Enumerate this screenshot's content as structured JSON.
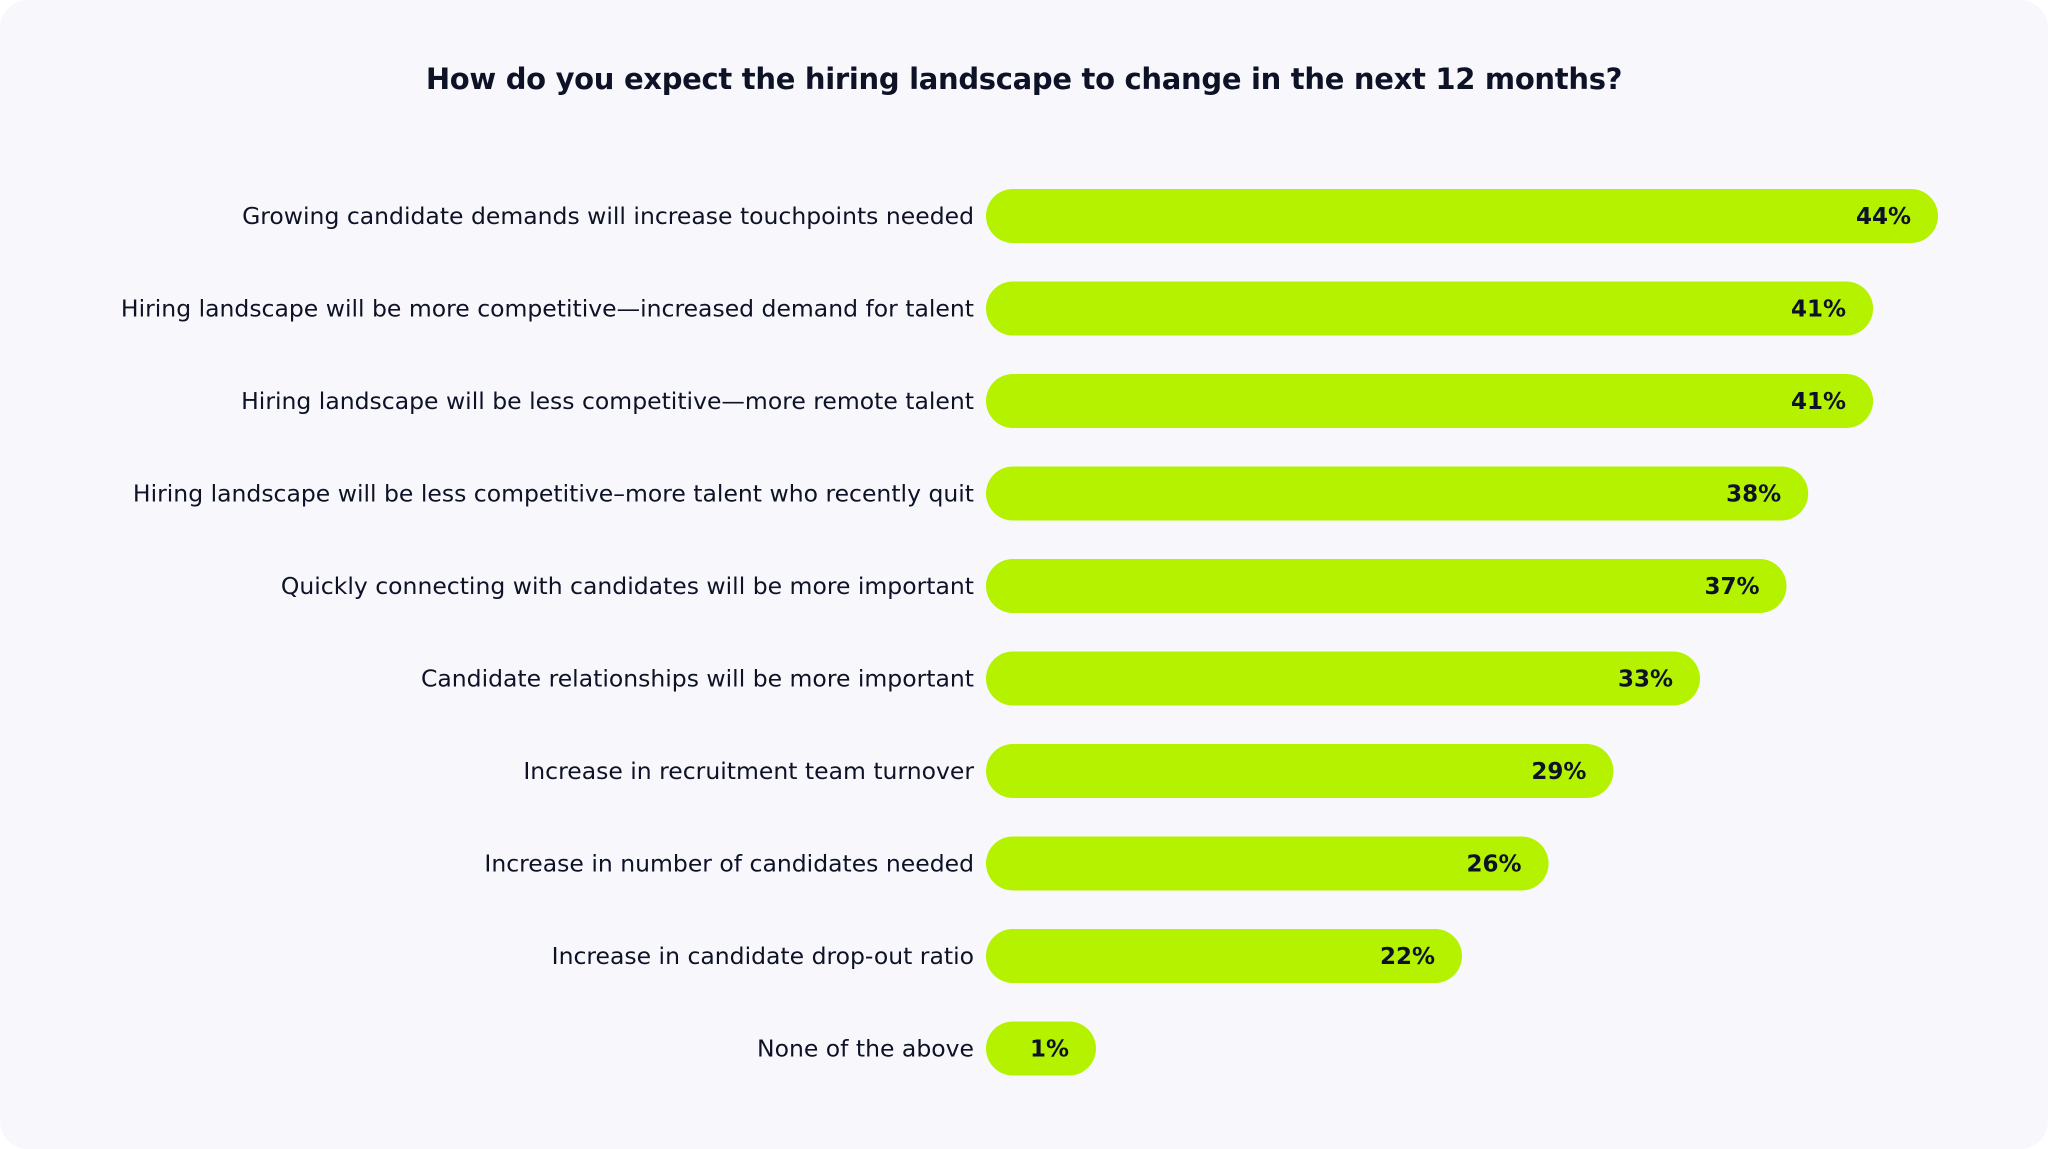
{
  "chart_data": {
    "type": "bar",
    "orientation": "horizontal",
    "title": "How do you expect the hiring landscape to change in the next 12 months?",
    "xlabel": "",
    "ylabel": "",
    "grid": false,
    "unit": "%",
    "xlim": [
      0,
      44
    ],
    "bar_color": "#b4f200",
    "categories": [
      "Growing candidate demands will increase touchpoints needed",
      "Hiring landscape will be more competitive—increased demand for talent",
      "Hiring landscape will be less competitive—more remote talent",
      "Hiring landscape will be less competitive–more talent who recently quit",
      "Quickly connecting with candidates will be more important",
      "Candidate relationships will be more important",
      "Increase in recruitment team turnover",
      "Increase in number of candidates needed",
      "Increase in candidate drop-out ratio",
      "None of the above"
    ],
    "values": [
      44,
      41,
      41,
      38,
      37,
      33,
      29,
      26,
      22,
      1
    ],
    "value_labels": [
      "44%",
      "41%",
      "41%",
      "38%",
      "37%",
      "33%",
      "29%",
      "26%",
      "22%",
      "1%"
    ]
  }
}
